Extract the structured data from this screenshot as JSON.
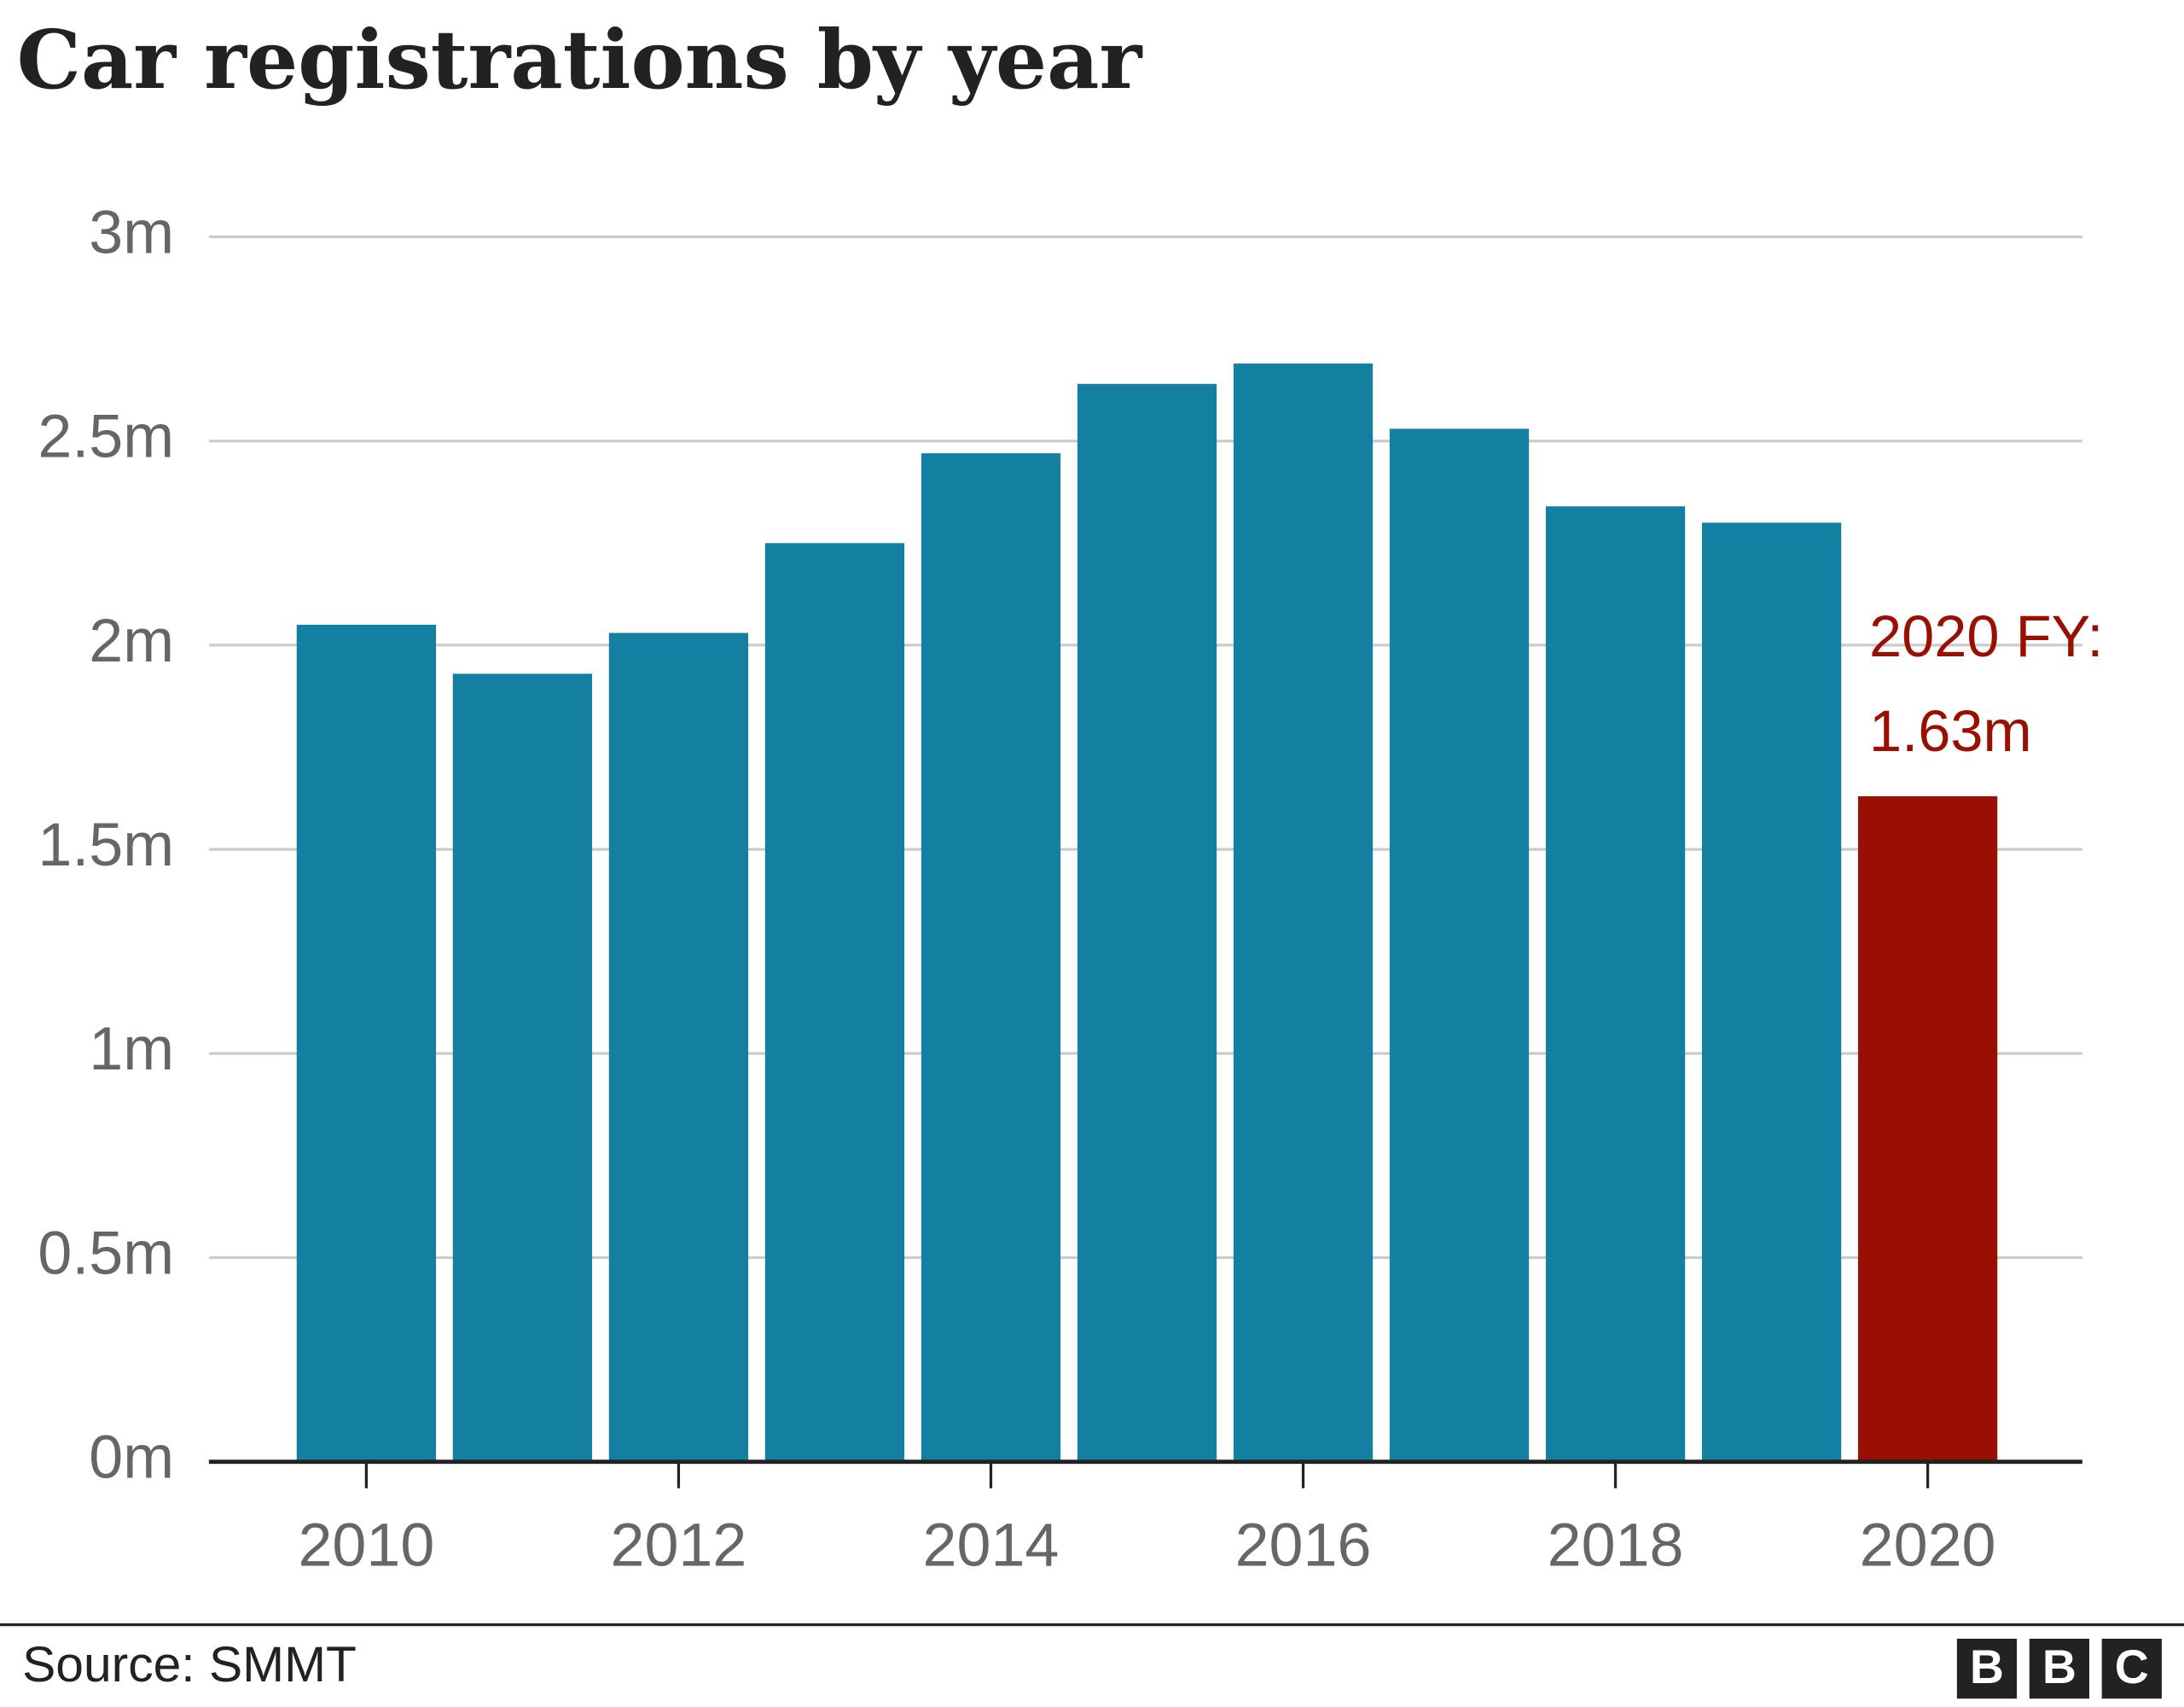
{
  "chart_data": {
    "type": "bar",
    "title": "Car registrations by year",
    "categories": [
      "2010",
      null,
      "2012",
      null,
      "2014",
      null,
      "2016",
      null,
      "2018",
      null,
      "2020"
    ],
    "values": [
      2.05,
      1.93,
      2.03,
      2.25,
      2.47,
      2.64,
      2.69,
      2.53,
      2.34,
      2.3,
      1.63
    ],
    "colors": [
      "#1380a1",
      "#1380a1",
      "#1380a1",
      "#1380a1",
      "#1380a1",
      "#1380a1",
      "#1380a1",
      "#1380a1",
      "#1380a1",
      "#1380a1",
      "#990f02"
    ],
    "ylim": [
      0,
      3
    ],
    "yticks": [
      {
        "value": 0,
        "label": "0m"
      },
      {
        "value": 0.5,
        "label": "0.5m"
      },
      {
        "value": 1,
        "label": "1m"
      },
      {
        "value": 1.5,
        "label": "1.5m"
      },
      {
        "value": 2,
        "label": "2m"
      },
      {
        "value": 2.5,
        "label": "2.5m"
      },
      {
        "value": 3,
        "label": "3m"
      }
    ],
    "grid": true,
    "annotation": [
      "2020 FY:",
      "1.63m"
    ],
    "source": "Source: SMMT",
    "logo": [
      "B",
      "B",
      "C"
    ]
  }
}
